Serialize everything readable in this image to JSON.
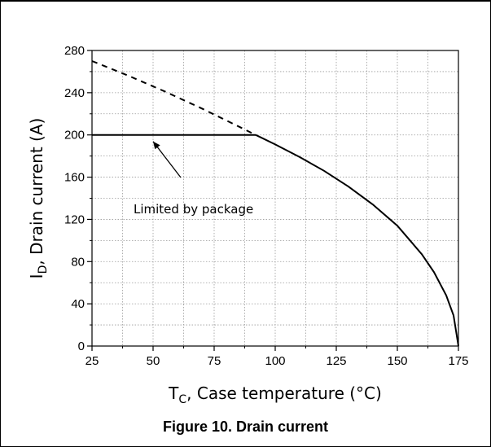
{
  "caption": "Figure 10. Drain current",
  "chart_data": {
    "type": "line",
    "x_axis": {
      "label_main": "T",
      "label_sub": "C",
      "label_rest": ", Case temperature (°C)",
      "range": [
        25,
        175
      ],
      "ticks": [
        25,
        50,
        75,
        100,
        125,
        150,
        175
      ]
    },
    "y_axis": {
      "label_main": "I",
      "label_sub": "D",
      "label_rest": ", Drain current (A)",
      "range": [
        0,
        280
      ],
      "ticks": [
        0,
        40,
        80,
        120,
        160,
        200,
        240,
        280
      ]
    },
    "grid": true,
    "series": [
      {
        "style": "dashed",
        "x": [
          25,
          40,
          55,
          70,
          85,
          92
        ],
        "y": [
          270,
          256,
          241,
          225,
          208,
          200
        ]
      },
      {
        "style": "solid",
        "x": [
          25,
          92
        ],
        "y": [
          200,
          200
        ]
      },
      {
        "style": "solid",
        "x": [
          92,
          100,
          110,
          120,
          130,
          140,
          150,
          160,
          165,
          170,
          173,
          175
        ],
        "y": [
          200,
          191,
          179,
          166,
          151,
          134,
          114,
          87,
          70,
          48,
          29,
          0
        ]
      }
    ],
    "annotation": {
      "text": "Limited by package",
      "arrow_to": [
        50,
        200
      ]
    }
  }
}
